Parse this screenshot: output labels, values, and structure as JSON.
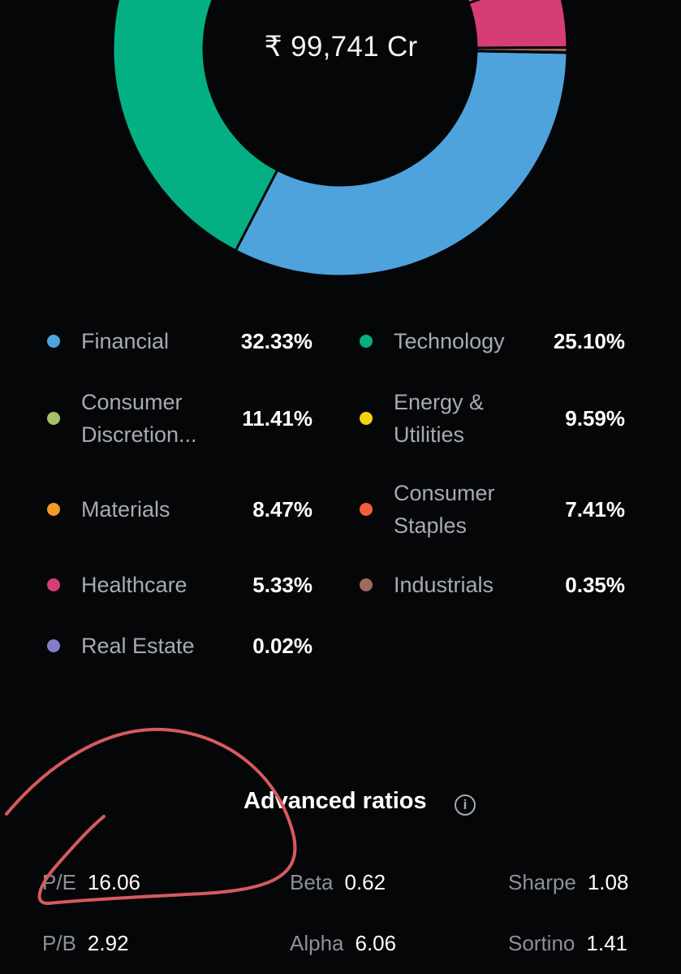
{
  "donut": {
    "total": "₹ 99,741 Cr"
  },
  "chart_data": {
    "type": "pie",
    "categories": [
      "Financial",
      "Technology",
      "Consumer Discretion...",
      "Energy & Utilities",
      "Materials",
      "Consumer Staples",
      "Healthcare",
      "Industrials",
      "Real Estate"
    ],
    "values": [
      32.33,
      25.1,
      11.41,
      9.59,
      8.47,
      7.41,
      5.33,
      0.35,
      0.02
    ],
    "title": "",
    "center_label": "₹ 99,741 Cr"
  },
  "legend": {
    "items": [
      {
        "name": "Financial",
        "pct": "32.33%",
        "color": "#4fa3dd"
      },
      {
        "name": "Technology",
        "pct": "25.10%",
        "color": "#04b083"
      },
      {
        "name": "Consumer Discretion...",
        "pct": "11.41%",
        "color": "#a4c06a"
      },
      {
        "name": "Energy & Utilities",
        "pct": "9.59%",
        "color": "#f6d20e"
      },
      {
        "name": "Materials",
        "pct": "8.47%",
        "color": "#f39a26"
      },
      {
        "name": "Consumer Staples",
        "pct": "7.41%",
        "color": "#f2603a"
      },
      {
        "name": "Healthcare",
        "pct": "5.33%",
        "color": "#d63d77"
      },
      {
        "name": "Industrials",
        "pct": "0.35%",
        "color": "#a06a5f"
      },
      {
        "name": "Real Estate",
        "pct": "0.02%",
        "color": "#7f7fc9"
      }
    ]
  },
  "advanced_ratios": {
    "title": "Advanced ratios",
    "ratios": [
      {
        "label": "P/E",
        "value": "16.06"
      },
      {
        "label": "Beta",
        "value": "0.62"
      },
      {
        "label": "Sharpe",
        "value": "1.08"
      },
      {
        "label": "P/B",
        "value": "2.92"
      },
      {
        "label": "Alpha",
        "value": "6.06"
      },
      {
        "label": "Sortino",
        "value": "1.41"
      }
    ]
  }
}
